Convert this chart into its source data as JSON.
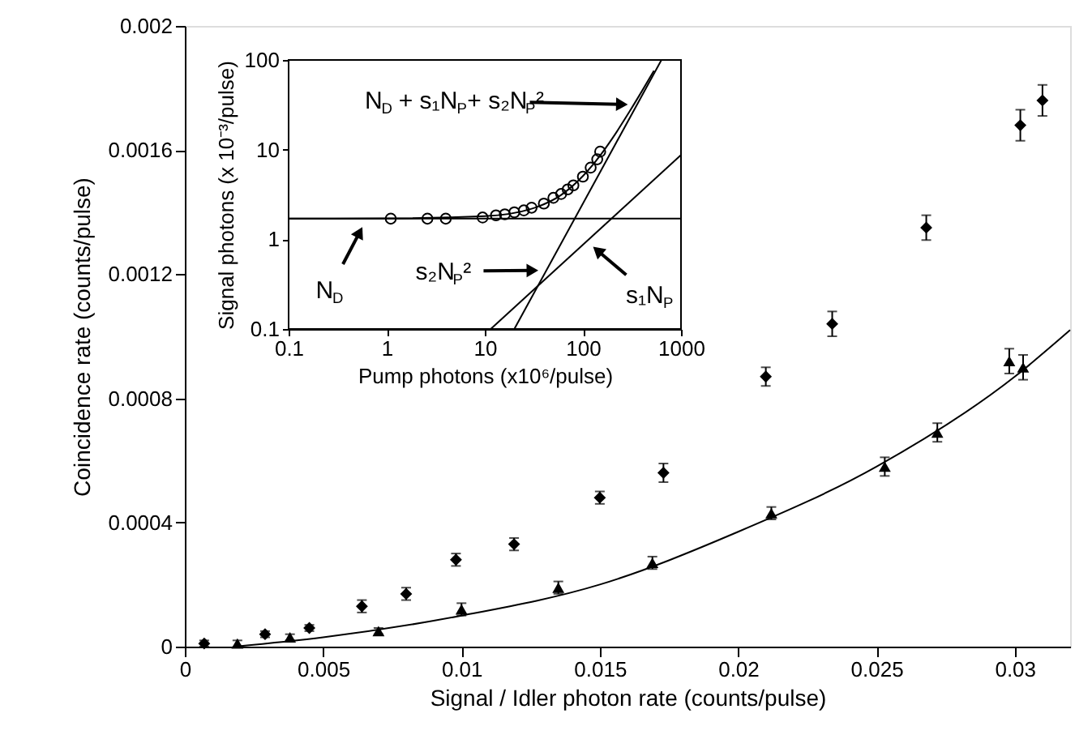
{
  "chart_data": [
    {
      "type": "scatter",
      "xlabel": "Signal / Idler photon rate (counts/pulse)",
      "ylabel": "Coincidence rate (counts/pulse)",
      "xlim": [
        0,
        0.032
      ],
      "ylim": [
        0,
        0.002
      ],
      "xticks": [
        0,
        0.005,
        0.01,
        0.015,
        0.02,
        0.025,
        0.03
      ],
      "yticks": [
        0,
        0.0004,
        0.0008,
        0.0012,
        0.0016,
        0.002
      ],
      "series": [
        {
          "marker": "diamond",
          "color": "#000000",
          "x": [
            0.0007,
            0.0029,
            0.0045,
            0.0064,
            0.008,
            0.0098,
            0.0119,
            0.015,
            0.0173,
            0.021,
            0.0234,
            0.0268,
            0.0302,
            0.031
          ],
          "values": [
            1e-05,
            4e-05,
            6e-05,
            0.00013,
            0.00017,
            0.00028,
            0.00033,
            0.00048,
            0.00056,
            0.00087,
            0.00104,
            0.00135,
            0.00168,
            0.00176
          ],
          "errors": [
            1e-05,
            1e-05,
            1e-05,
            2e-05,
            2e-05,
            2e-05,
            2e-05,
            2e-05,
            3e-05,
            3e-05,
            4e-05,
            4e-05,
            5e-05,
            5e-05
          ]
        },
        {
          "marker": "triangle",
          "color": "#000000",
          "x": [
            0.0019,
            0.0038,
            0.007,
            0.01,
            0.0135,
            0.0169,
            0.0212,
            0.0253,
            0.0272,
            0.0298,
            0.0303
          ],
          "values": [
            1e-05,
            3e-05,
            5e-05,
            0.00012,
            0.00019,
            0.00027,
            0.00043,
            0.00058,
            0.00069,
            0.00092,
            0.0009
          ],
          "errors": [
            1e-05,
            1e-05,
            1e-05,
            2e-05,
            2e-05,
            2e-05,
            2e-05,
            3e-05,
            3e-05,
            4e-05,
            4e-05
          ]
        },
        {
          "type": "line",
          "marker": "none",
          "line_style": "solid",
          "color": "#000000",
          "x": [
            0.0018,
            0.005,
            0.01,
            0.015,
            0.02,
            0.025,
            0.03,
            0.032
          ],
          "values": [
            0,
            3e-05,
            0.0001,
            0.0002,
            0.00037,
            0.00058,
            0.00087,
            0.00102
          ]
        }
      ]
    },
    {
      "type": "scatter",
      "xlabel": "Pump photons (x10⁶/pulse)",
      "ylabel": "Signal photons (x 10⁻³/pulse)",
      "log": "xy",
      "xlim": [
        0.1,
        1000
      ],
      "ylim": [
        0.1,
        100
      ],
      "xticks": [
        0.1,
        1,
        10,
        100,
        1000
      ],
      "yticks": [
        0.1,
        1,
        10,
        100
      ],
      "series": [
        {
          "marker": "circle",
          "color": "#000000",
          "x": [
            1.1,
            2.6,
            4,
            9.5,
            13,
            16,
            20,
            25,
            30,
            40,
            50,
            60,
            70,
            80,
            100,
            120,
            140,
            150
          ],
          "values": [
            1.7,
            1.7,
            1.7,
            1.75,
            1.85,
            1.9,
            2.0,
            2.1,
            2.25,
            2.5,
            2.9,
            3.2,
            3.6,
            4.0,
            5.0,
            6.3,
            7.8,
            9.5
          ]
        },
        {
          "type": "line",
          "marker": "none",
          "line_style": "solid",
          "color": "#000000",
          "x": [
            0.1,
            1000
          ],
          "values": [
            1.7,
            1.7
          ]
        },
        {
          "type": "line",
          "marker": "none",
          "line_style": "solid",
          "color": "#000000",
          "x": [
            11.5,
            1000
          ],
          "values": [
            0.1,
            8.7
          ]
        },
        {
          "type": "line",
          "marker": "none",
          "line_style": "solid",
          "color": "#000000",
          "x": [
            20,
            632
          ],
          "values": [
            0.1,
            100
          ]
        },
        {
          "type": "line",
          "marker": "none",
          "line_style": "solid",
          "color": "#000000",
          "x": [
            0.1,
            1,
            10,
            30,
            60,
            100,
            150,
            200,
            300,
            400,
            530
          ],
          "values": [
            1.7,
            1.71,
            1.81,
            2.19,
            3.12,
            5.07,
            8.6,
            13.4,
            26.8,
            45,
            76
          ]
        }
      ],
      "annotations": [
        {
          "text": "N$_{D}$ + s₁N$_{P}$+ s₂N$_{P}$²",
          "x": 250,
          "y": 32
        },
        {
          "text": "N$_{D}$",
          "x": 0.53,
          "y": 1.2
        },
        {
          "text": "s₂N$_{P}$²",
          "x": 30.6,
          "y": 0.45
        },
        {
          "text": "s₁N$_{P}$",
          "x": 141,
          "y": 0.75
        }
      ]
    }
  ]
}
